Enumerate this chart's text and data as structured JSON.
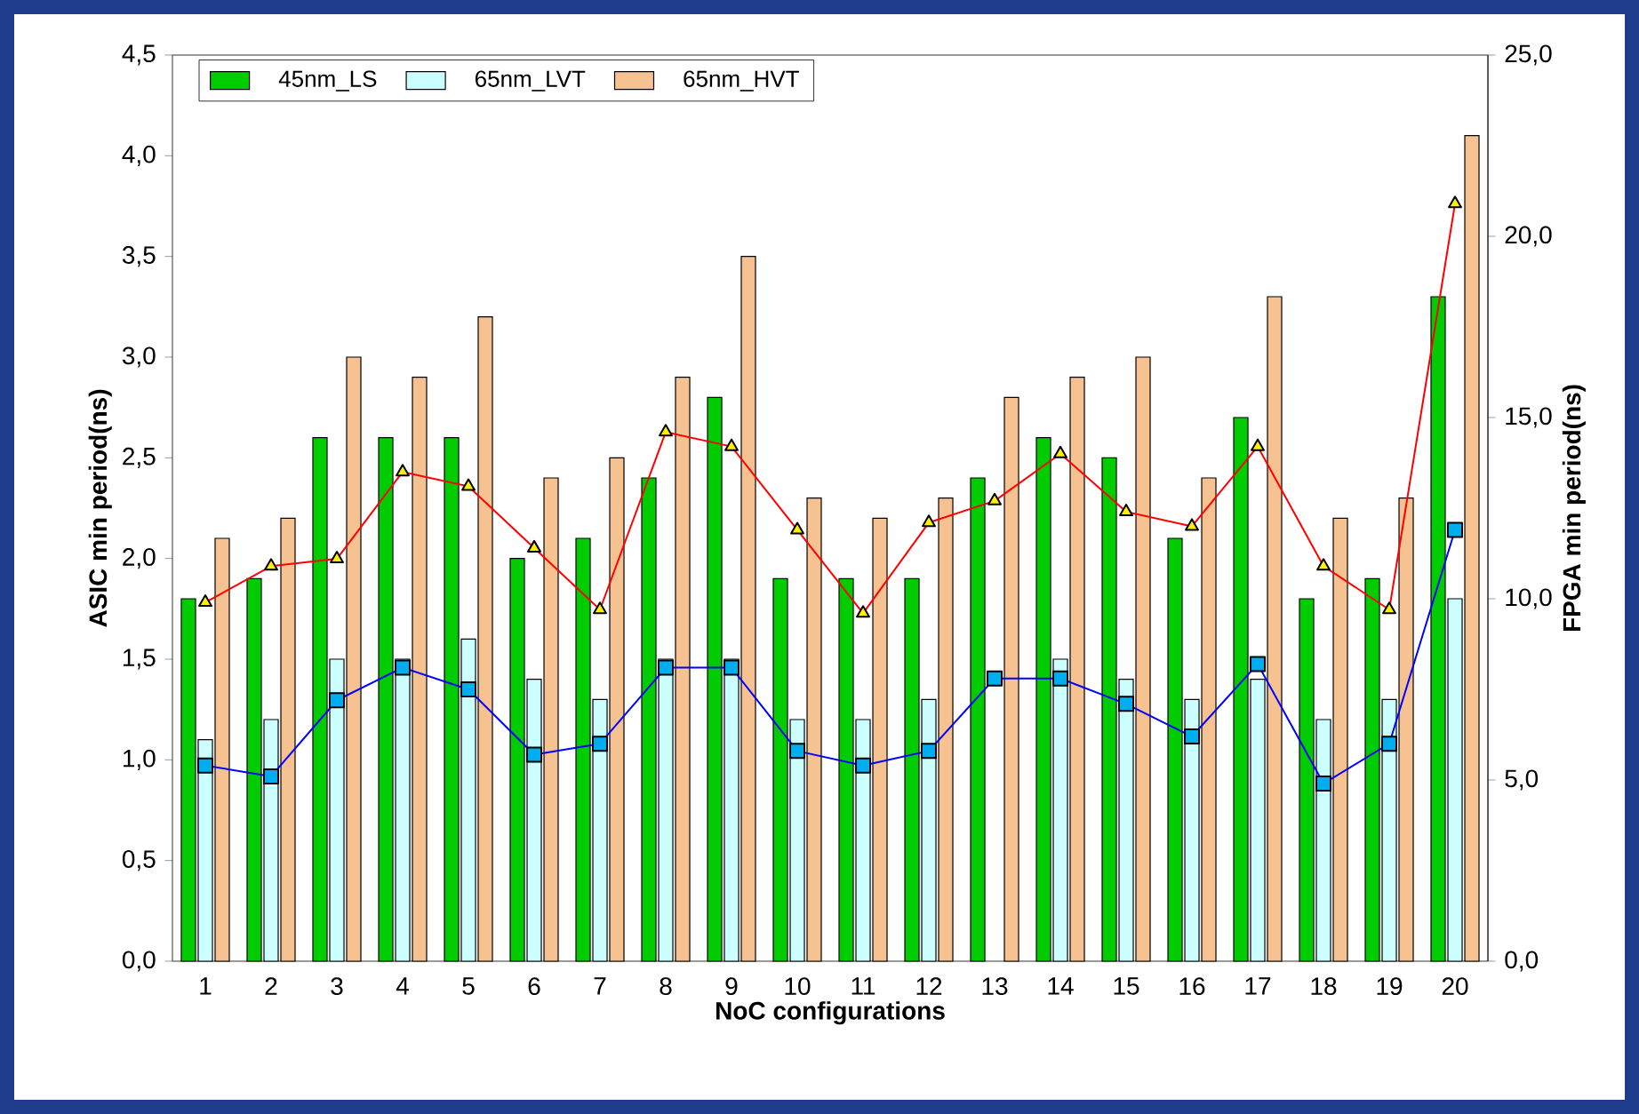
{
  "chart_data": {
    "type": "bar",
    "xlabel": "NoC configurations",
    "ylabel": "ASIC min period(ns)",
    "y2label": "FPGA min period(ns)",
    "categories": [
      "1",
      "2",
      "3",
      "4",
      "5",
      "6",
      "7",
      "8",
      "9",
      "10",
      "11",
      "12",
      "13",
      "14",
      "15",
      "16",
      "17",
      "18",
      "19",
      "20"
    ],
    "series": [
      {
        "name": "45nm_LS",
        "color": "#00cc00",
        "values": [
          1.8,
          1.9,
          2.6,
          2.6,
          2.6,
          2.0,
          2.1,
          2.4,
          2.8,
          1.9,
          1.9,
          1.9,
          2.4,
          2.6,
          2.5,
          2.1,
          2.7,
          1.8,
          1.9,
          3.3
        ]
      },
      {
        "name": "65nm_LVT",
        "color": "#ccffff",
        "values": [
          1.1,
          1.2,
          1.5,
          1.5,
          1.6,
          1.4,
          1.3,
          1.5,
          1.5,
          1.2,
          1.2,
          1.3,
          null,
          1.5,
          1.4,
          1.3,
          1.4,
          1.2,
          1.3,
          1.8
        ]
      },
      {
        "name": "65nm_HVT",
        "color": "#f6c291",
        "values": [
          2.1,
          2.2,
          3.0,
          2.9,
          3.2,
          2.4,
          2.5,
          2.9,
          3.5,
          2.3,
          2.2,
          2.3,
          2.8,
          2.9,
          3.0,
          2.4,
          3.3,
          2.2,
          2.3,
          4.1
        ]
      },
      {
        "type": "line",
        "axis": "y2",
        "color": "#ff0000",
        "marker": "triangle",
        "values": [
          9.9,
          10.9,
          11.1,
          13.5,
          13.1,
          11.4,
          9.7,
          14.6,
          14.2,
          11.9,
          9.6,
          12.1,
          12.7,
          14.0,
          12.4,
          12.0,
          14.2,
          10.9,
          9.7,
          20.9
        ]
      },
      {
        "type": "line",
        "axis": "y2",
        "color": "#0000ff",
        "marker": "square",
        "values": [
          5.4,
          5.1,
          7.2,
          8.1,
          7.5,
          5.7,
          6.0,
          8.1,
          8.1,
          5.8,
          5.4,
          5.8,
          7.8,
          7.8,
          7.1,
          6.2,
          8.2,
          4.9,
          6.0,
          11.9
        ]
      }
    ],
    "ylim": [
      0,
      4.5
    ],
    "yticks": [
      {
        "value": 0,
        "label": "0,0"
      },
      {
        "value": 0.5,
        "label": "0,5"
      },
      {
        "value": 1,
        "label": "1,0"
      },
      {
        "value": 1.5,
        "label": "1,5"
      },
      {
        "value": 2,
        "label": "2,0"
      },
      {
        "value": 2.5,
        "label": "2,5"
      },
      {
        "value": 3,
        "label": "3,0"
      },
      {
        "value": 3.5,
        "label": "3,5"
      },
      {
        "value": 4,
        "label": "4,0"
      },
      {
        "value": 4.5,
        "label": "4,5"
      }
    ],
    "y2lim": [
      0,
      25
    ],
    "y2ticks": [
      {
        "value": 0,
        "label": "0,0"
      },
      {
        "value": 5,
        "label": "5,0"
      },
      {
        "value": 10,
        "label": "10,0"
      },
      {
        "value": 15,
        "label": "15,0"
      },
      {
        "value": 20,
        "label": "20,0"
      },
      {
        "value": 25,
        "label": "25,0"
      }
    ],
    "legend": "top left",
    "line_style": "solid"
  }
}
